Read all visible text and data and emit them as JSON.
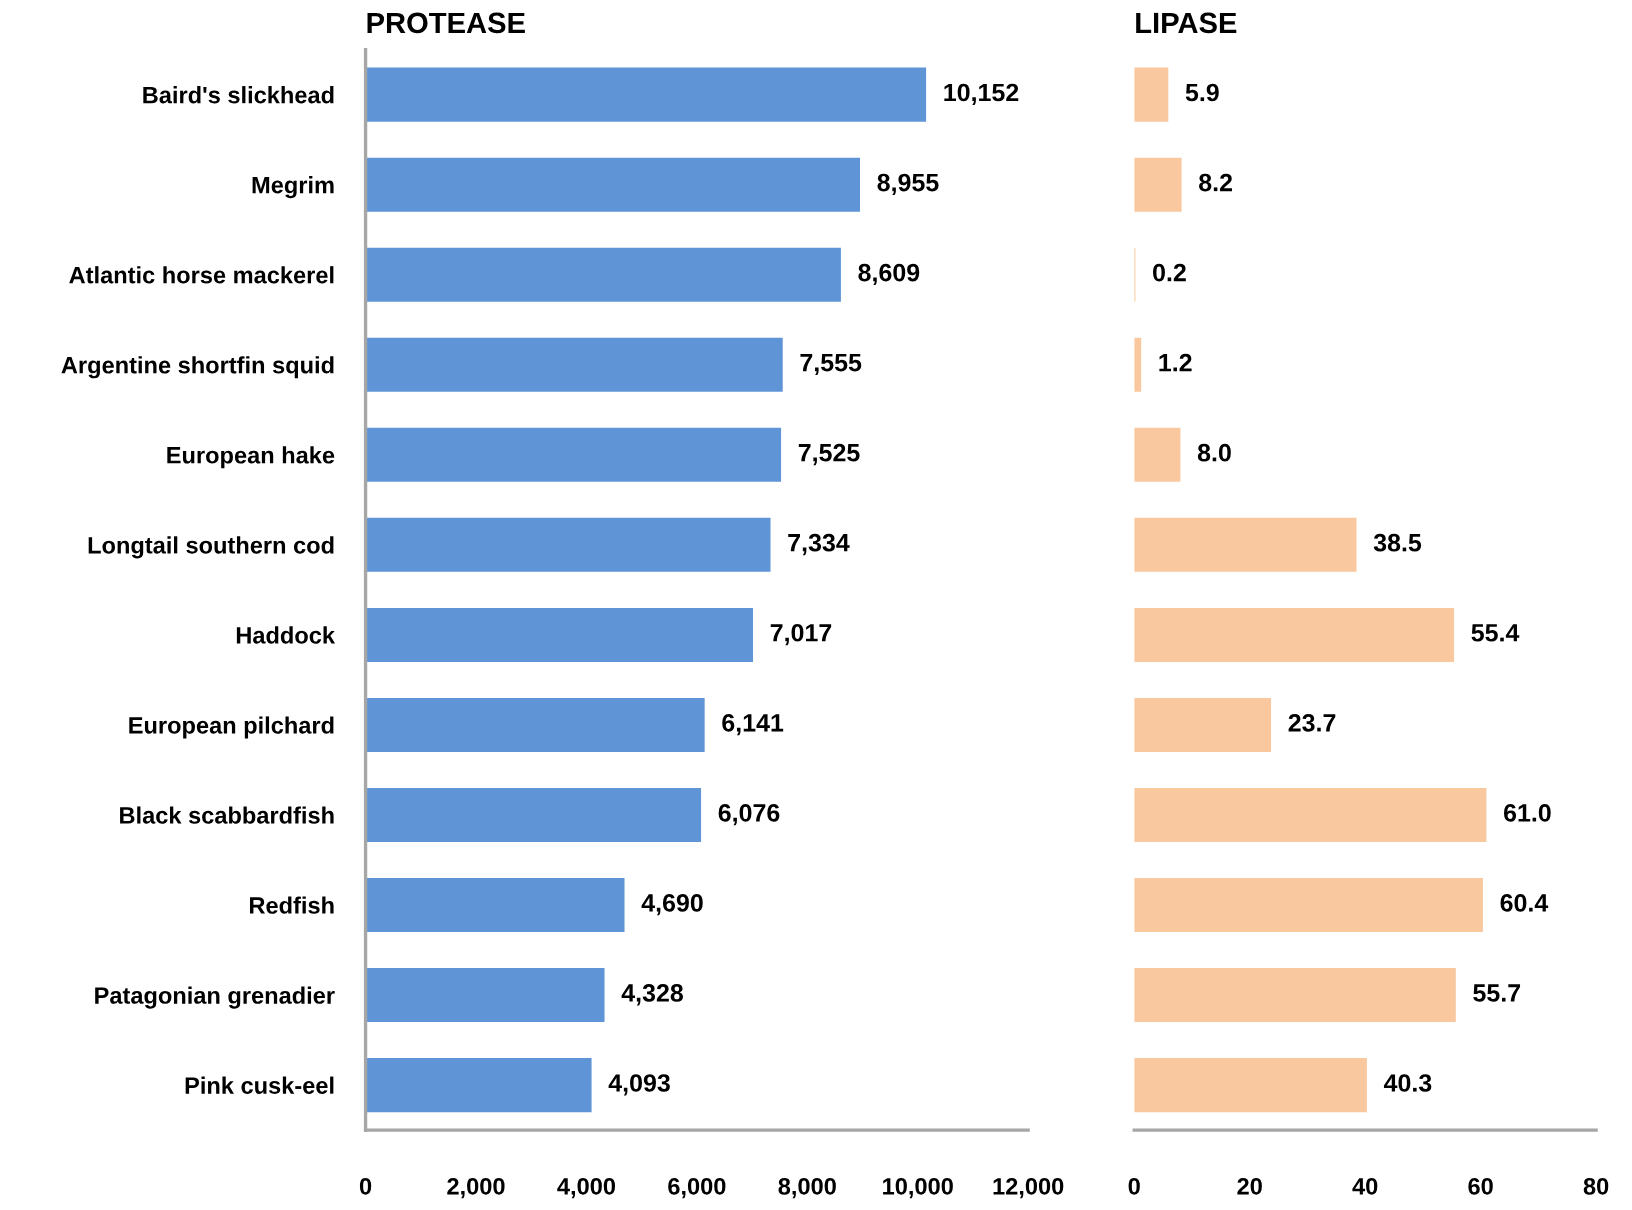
{
  "chart_data": [
    {
      "type": "bar",
      "orientation": "horizontal",
      "title": "PROTEASE",
      "categories": [
        "Baird's slickhead",
        "Megrim",
        "Atlantic horse mackerel",
        "Argentine shortfin squid",
        "European hake",
        "Longtail southern cod",
        "Haddock",
        "European pilchard",
        "Black scabbardfish",
        "Redfish",
        "Patagonian grenadier",
        "Pink cusk-eel"
      ],
      "values": [
        10152,
        8955,
        8609,
        7555,
        7525,
        7334,
        7017,
        6141,
        6076,
        4690,
        4328,
        4093
      ],
      "value_labels": [
        "10,152",
        "8,955",
        "8,609",
        "7,555",
        "7,525",
        "7,334",
        "7,017",
        "6,141",
        "6,076",
        "4,690",
        "4,328",
        "4,093"
      ],
      "color": "#5f95d6",
      "xlim": [
        0,
        12000
      ],
      "xticks": [
        0,
        {
          "value": 2000,
          "label": "2,000"
        },
        {
          "value": 4000,
          "label": "4,000"
        },
        {
          "value": 6000,
          "label": "6,000"
        },
        {
          "value": 8000,
          "label": "8,000"
        },
        {
          "value": 10000,
          "label": "10,000"
        },
        {
          "value": 12000,
          "label": "12,000"
        }
      ]
    },
    {
      "type": "bar",
      "orientation": "horizontal",
      "title": "LIPASE",
      "categories": [
        null,
        null,
        null,
        null,
        null,
        null,
        null,
        null,
        null,
        null,
        null,
        null
      ],
      "values": [
        5.9,
        8.2,
        0.2,
        1.2,
        8.0,
        38.5,
        55.4,
        23.7,
        61.0,
        60.4,
        55.7,
        40.3
      ],
      "value_labels": [
        "5.9",
        "8.2",
        "0.2",
        "1.2",
        "8.0",
        "38.5",
        "55.4",
        "23.7",
        "61.0",
        "60.4",
        "55.7",
        "40.3"
      ],
      "color": "#f9c89e",
      "xlim": [
        0,
        80
      ],
      "xticks": [
        0,
        20,
        40,
        60,
        80
      ]
    }
  ]
}
